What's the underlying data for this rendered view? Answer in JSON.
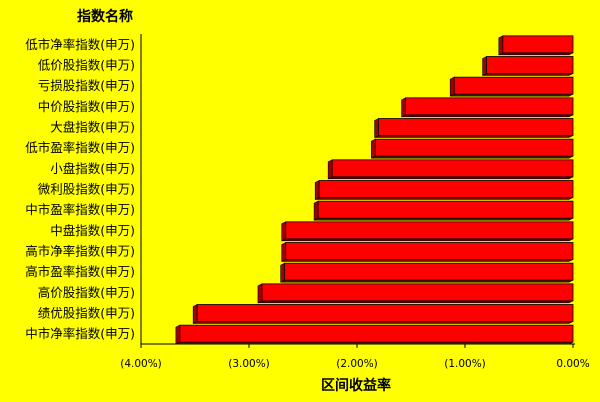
{
  "chart_data": {
    "type": "bar",
    "orientation": "horizontal",
    "title": "",
    "category_axis_title": "指数名称",
    "value_axis_title": "区间收益率",
    "categories": [
      "低市净率指数(申万)",
      "低价股指数(申万)",
      "亏损股指数(申万)",
      "中价股指数(申万)",
      "大盘指数(申万)",
      "低市盈率指数(申万)",
      "小盘指数(申万)",
      "微利股指数(申万)",
      "中市盈率指数(申万)",
      "中盘指数(申万)",
      "高市净率指数(申万)",
      "高市盈率指数(申万)",
      "高价股指数(申万)",
      "绩优股指数(申万)",
      "中市净率指数(申万)"
    ],
    "values": [
      -0.65,
      -0.8,
      -1.1,
      -1.55,
      -1.8,
      -1.83,
      -2.23,
      -2.35,
      -2.36,
      -2.66,
      -2.66,
      -2.67,
      -2.88,
      -3.48,
      -3.64
    ],
    "value_unit": "%",
    "xlim": [
      -4.0,
      0.0
    ],
    "x_ticks": [
      {
        "value": -4,
        "label": "(4.00%)"
      },
      {
        "value": -3,
        "label": "(3.00%)"
      },
      {
        "value": -2,
        "label": "(2.00%)"
      },
      {
        "value": -1,
        "label": "(1.00%)"
      },
      {
        "value": 0,
        "label": "0.00%"
      }
    ],
    "bar_color": "#ff0000",
    "background_color": "#ffff00",
    "grid": false,
    "legend": "none"
  }
}
